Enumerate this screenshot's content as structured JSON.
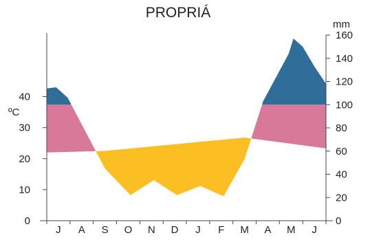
{
  "chart_data": {
    "type": "area",
    "title": "PROPRIÁ",
    "left_unit": "ºC",
    "right_unit": "mm",
    "categories": [
      "J",
      "A",
      "S",
      "O",
      "N",
      "D",
      "J",
      "F",
      "M",
      "A",
      "M",
      "J"
    ],
    "left_ylim": [
      0,
      45
    ],
    "left_ticks": [
      0,
      10,
      20,
      30,
      40
    ],
    "left_tick_labels": [
      "0",
      "10",
      "20",
      "30",
      "40"
    ],
    "right_ylim": [
      0,
      160
    ],
    "right_ticks": [
      0,
      20,
      40,
      60,
      80,
      100,
      120,
      140,
      160
    ],
    "right_tick_labels": [
      "0",
      "20",
      "40",
      "60",
      "80",
      "100",
      "120",
      "140",
      "160"
    ],
    "series": [
      {
        "key": "temperature",
        "axis": "left",
        "x": [
          0,
          2.5,
          8.5,
          12
        ],
        "values": [
          22.0,
          22.5,
          26.8,
          23.3
        ]
      },
      {
        "key": "precipitation",
        "axis": "right",
        "x": [
          0,
          0.4,
          0.9,
          2.5,
          3.6,
          4.6,
          5.6,
          6.6,
          7.6,
          8.5,
          9.3,
          10.4,
          10.6,
          11,
          11.5,
          12
        ],
        "values": [
          114,
          115,
          106,
          45,
          22,
          35,
          22,
          30,
          21,
          53,
          103,
          144,
          157,
          150,
          133,
          118
        ]
      }
    ],
    "fill_colors": {
      "rain_excess": "#2e6e99",
      "water_surplus": "#d8799a",
      "water_deficit": "#fbbf24"
    },
    "ymax_threshold_mm": 100
  }
}
